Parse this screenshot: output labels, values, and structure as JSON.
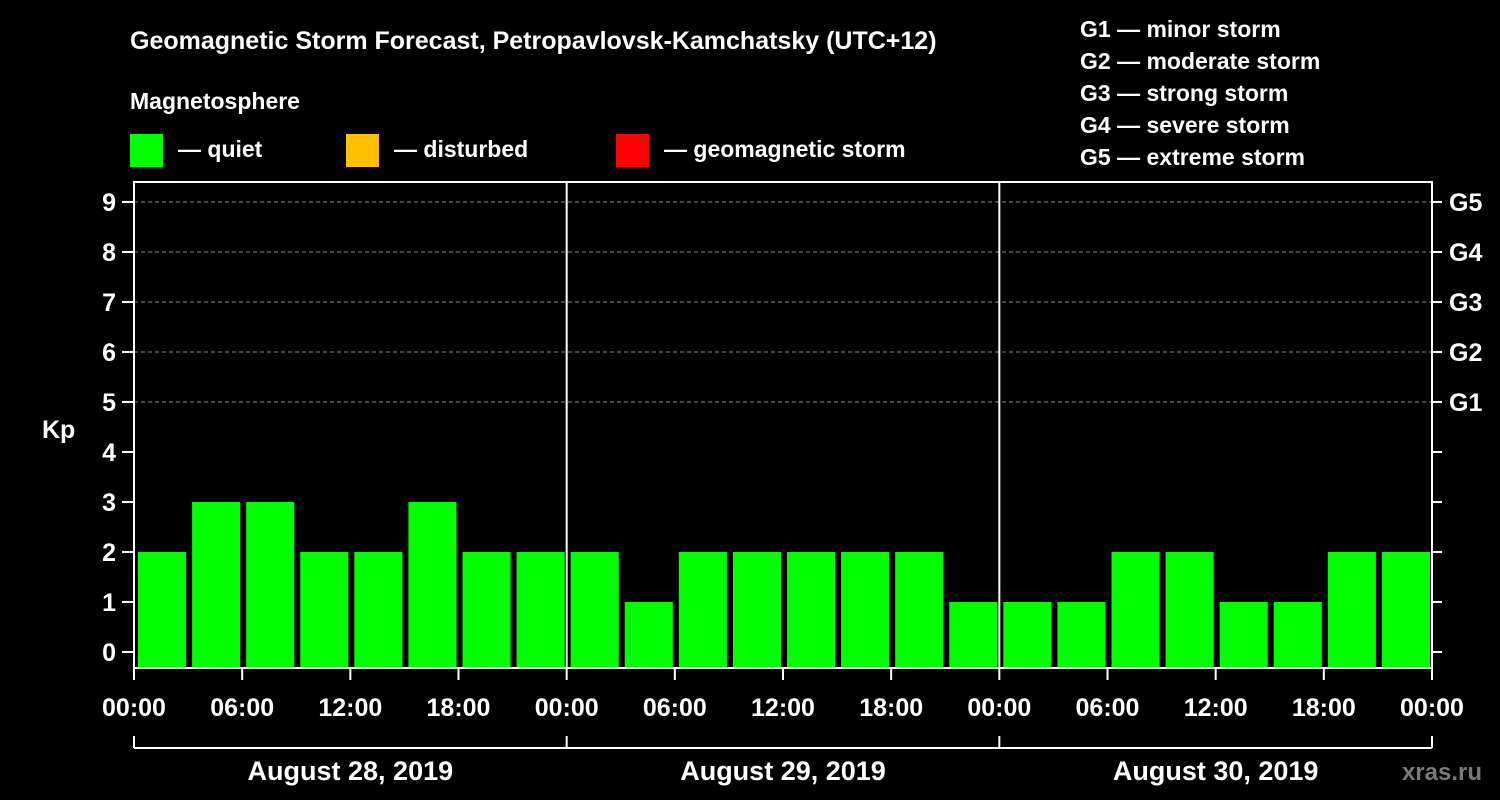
{
  "chart_data": {
    "type": "bar",
    "title": "Geomagnetic Storm Forecast, Petropavlovsk-Kamchatsky (UTC+12)",
    "ylabel": "Kp",
    "ylim": [
      0,
      9
    ],
    "yticks": [
      "0",
      "1",
      "2",
      "3",
      "4",
      "5",
      "6",
      "7",
      "8",
      "9"
    ],
    "gticks": [
      {
        "label": "G1",
        "kp": 5
      },
      {
        "label": "G2",
        "kp": 6
      },
      {
        "label": "G3",
        "kp": 7
      },
      {
        "label": "G4",
        "kp": 8
      },
      {
        "label": "G5",
        "kp": 9
      }
    ],
    "xticks": [
      "00:00",
      "06:00",
      "12:00",
      "18:00",
      "00:00",
      "06:00",
      "12:00",
      "18:00",
      "00:00",
      "06:00",
      "12:00",
      "18:00",
      "00:00"
    ],
    "days": [
      "August 28, 2019",
      "August 29, 2019",
      "August 30, 2019"
    ],
    "bar_interval_hours": 3,
    "values": [
      2,
      3,
      3,
      2,
      2,
      3,
      2,
      2,
      2,
      1,
      2,
      2,
      2,
      2,
      2,
      1,
      1,
      1,
      2,
      2,
      1,
      1,
      2,
      2
    ],
    "bar_color": "#00ff00",
    "grid": true
  },
  "legend": {
    "heading": "Magnetosphere",
    "items": [
      {
        "label": "— quiet",
        "color": "#00ff00"
      },
      {
        "label": "— disturbed",
        "color": "#ffc000"
      },
      {
        "label": "— geomagnetic storm",
        "color": "#ff0000"
      }
    ]
  },
  "storm_scale": [
    "G1 — minor storm",
    "G2 — moderate storm",
    "G3 — strong storm",
    "G4 — severe storm",
    "G5 — extreme storm"
  ],
  "watermark": "xras.ru"
}
